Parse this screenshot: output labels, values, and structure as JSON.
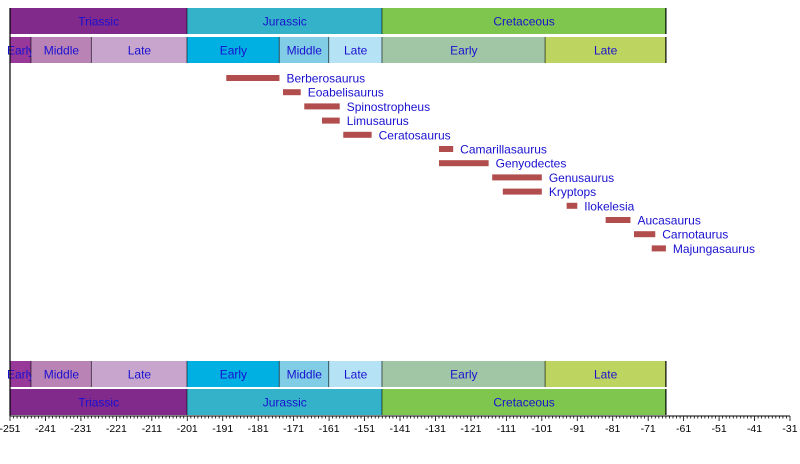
{
  "chart_data": {
    "type": "timeline",
    "title": "",
    "xlabel": "",
    "ylabel": "",
    "xlim": [
      -251,
      -31
    ],
    "x_ticks": [
      -251,
      -241,
      -231,
      -221,
      -211,
      -201,
      -191,
      -181,
      -171,
      -161,
      -151,
      -141,
      -131,
      -121,
      -111,
      -101,
      -91,
      -81,
      -71,
      -61,
      -51,
      -41,
      -31
    ],
    "periods": [
      {
        "name": "Triassic",
        "start": -251,
        "end": -201,
        "color": "#812a8c"
      },
      {
        "name": "Jurassic",
        "start": -201,
        "end": -146,
        "color": "#34b2c9"
      },
      {
        "name": "Cretaceous",
        "start": -146,
        "end": -66,
        "color": "#7fc64e"
      }
    ],
    "epochs": [
      {
        "name": "Early",
        "start": -251,
        "end": -245,
        "color": "#983999"
      },
      {
        "name": "Middle",
        "start": -245,
        "end": -228,
        "color": "#b983b6"
      },
      {
        "name": "Late",
        "start": -228,
        "end": -201,
        "color": "#c8a5cc"
      },
      {
        "name": "Early",
        "start": -201,
        "end": -175,
        "color": "#00b0e2"
      },
      {
        "name": "Middle",
        "start": -175,
        "end": -161,
        "color": "#80cde5"
      },
      {
        "name": "Late",
        "start": -161,
        "end": -146,
        "color": "#b5e2f5"
      },
      {
        "name": "Early",
        "start": -146,
        "end": -100,
        "color": "#a1c6a5"
      },
      {
        "name": "Late",
        "start": -100,
        "end": -66,
        "color": "#bed460"
      }
    ],
    "bar_color": "#b24d4d",
    "label_color": "#1a10d0",
    "taxa": [
      {
        "name": "Berberosaurus",
        "start": -190,
        "end": -175
      },
      {
        "name": "Eoabelisaurus",
        "start": -174,
        "end": -169
      },
      {
        "name": "Spinostropheus",
        "start": -168,
        "end": -158
      },
      {
        "name": "Limusaurus",
        "start": -163,
        "end": -158
      },
      {
        "name": "Ceratosaurus",
        "start": -157,
        "end": -149
      },
      {
        "name": "Camarillasaurus",
        "start": -130,
        "end": -126
      },
      {
        "name": "Genyodectes",
        "start": -130,
        "end": -116
      },
      {
        "name": "Genusaurus",
        "start": -115,
        "end": -101
      },
      {
        "name": "Kryptops",
        "start": -112,
        "end": -101
      },
      {
        "name": "Ilokelesia",
        "start": -94,
        "end": -91
      },
      {
        "name": "Aucasaurus",
        "start": -83,
        "end": -76
      },
      {
        "name": "Carnotaurus",
        "start": -75,
        "end": -69
      },
      {
        "name": "Majungasaurus",
        "start": -70,
        "end": -66
      }
    ]
  }
}
